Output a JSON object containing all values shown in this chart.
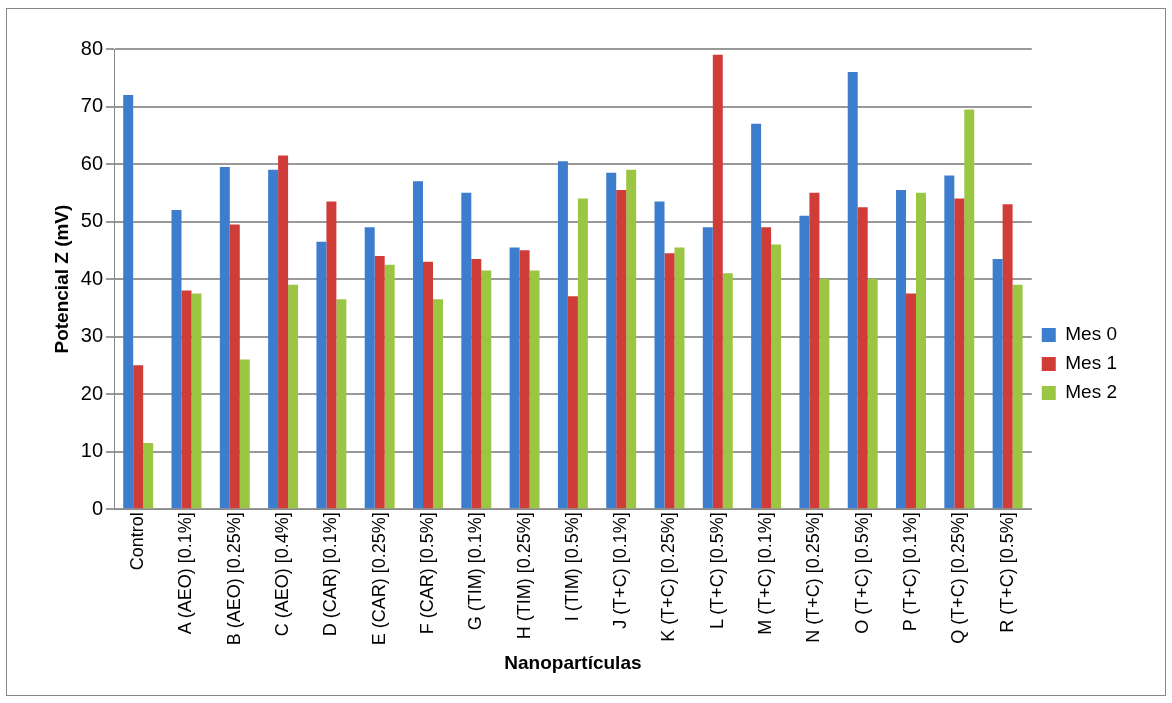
{
  "chart_data": {
    "type": "bar",
    "xlabel": "Nanopartículas",
    "ylabel": "Potencial Z (mV)",
    "categories": [
      "Control",
      "A (AEO) [0.1%]",
      "B (AEO) [0.25%]",
      "C (AEO) [0.4%]",
      "D (CAR) [0.1%]",
      "E (CAR) [0.25%]",
      "F (CAR) [0.5%]",
      "G (TIM) [0.1%]",
      "H (TIM) [0.25%]",
      "I (TIM) [0.5%]",
      "J (T+C) [0.1%]",
      "K (T+C) [0.25%]",
      "L (T+C) [0.5%]",
      "M (T+C) [0.1%]",
      "N (T+C) [0.25%]",
      "O (T+C) [0.5%]",
      "P (T+C) [0.1%]",
      "Q (T+C) [0.25%]",
      "R (T+C) [0.5%]"
    ],
    "series": [
      {
        "name": "Mes 0",
        "color": "#3c7dce",
        "values": [
          72,
          52,
          59.5,
          59,
          46.5,
          49,
          57,
          55,
          45.5,
          60.5,
          58.5,
          53.5,
          49,
          67,
          51,
          76,
          55.5,
          58,
          43.5
        ]
      },
      {
        "name": "Mes 1",
        "color": "#d03c38",
        "values": [
          25,
          38,
          49.5,
          61.5,
          53.5,
          44,
          43,
          43.5,
          45,
          37,
          55.5,
          44.5,
          79,
          49,
          55,
          52.5,
          37.5,
          54,
          53
        ]
      },
      {
        "name": "Mes 2",
        "color": "#9bc644",
        "values": [
          11.5,
          37.5,
          26,
          39,
          36.5,
          42.5,
          36.5,
          41.5,
          41.5,
          54,
          59,
          45.5,
          41,
          46,
          40,
          40,
          55,
          69.5,
          39
        ]
      }
    ],
    "ylim": [
      0,
      80
    ],
    "yticks": [
      0,
      10,
      20,
      30,
      40,
      50,
      60,
      70,
      80
    ],
    "grid": "y",
    "legend": "right"
  }
}
